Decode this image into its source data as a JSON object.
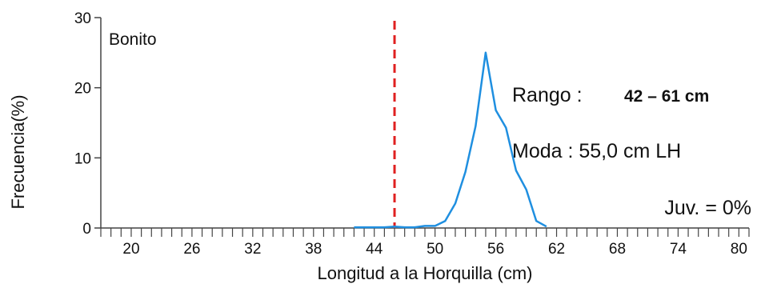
{
  "chart_data": {
    "type": "line",
    "title": "",
    "xlabel": "Longitud a la Horquilla (cm)",
    "ylabel": "Frecuencia(%)",
    "xlim": [
      17,
      81
    ],
    "ylim": [
      0,
      30
    ],
    "xticks": [
      20,
      26,
      32,
      38,
      44,
      50,
      56,
      62,
      68,
      74,
      80
    ],
    "yticks": [
      0,
      10,
      20,
      30
    ],
    "grid": false,
    "series": [
      {
        "name": "",
        "color": "#1f8fe0",
        "x": [
          42,
          43,
          44,
          45,
          46,
          47,
          48,
          49,
          50,
          51,
          52,
          53,
          54,
          55,
          56,
          57,
          58,
          59,
          60,
          61
        ],
        "y": [
          0.1,
          0.1,
          0.1,
          0.1,
          0.2,
          0.1,
          0.1,
          0.3,
          0.3,
          1.0,
          3.5,
          8.0,
          14.5,
          25.0,
          16.8,
          14.3,
          8.2,
          5.5,
          1.0,
          0.2
        ]
      }
    ],
    "reference_line": {
      "x": 46,
      "color": "#e02020",
      "style": "dashed"
    },
    "annotations": {
      "species": "Bonito",
      "rango_label": "Rango :",
      "rango_value": "42 – 61 cm",
      "moda": "Moda : 55,0 cm LH",
      "juv": "Juv. = 0%"
    }
  }
}
